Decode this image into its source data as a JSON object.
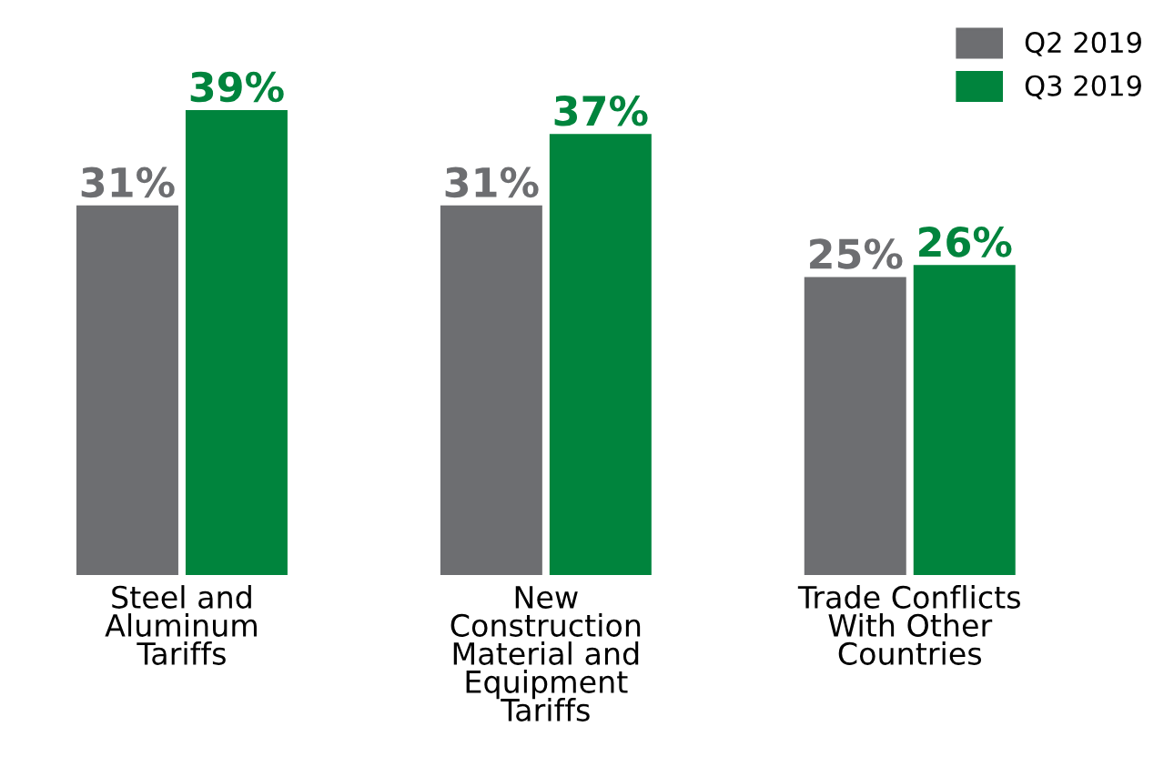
{
  "chart_data": {
    "type": "bar",
    "categories": [
      "Steel and\nAluminum\nTariffs",
      "New\nConstruction\nMaterial and\nEquipment\nTariffs",
      "Trade Conflicts\nWith Other\nCountries"
    ],
    "series": [
      {
        "name": "Q2 2019",
        "color": "#6d6e71",
        "values": [
          31,
          31,
          25
        ],
        "value_labels": [
          "31%",
          "31%",
          "25%"
        ]
      },
      {
        "name": "Q3 2019",
        "color": "#00843d",
        "values": [
          39,
          37,
          26
        ],
        "value_labels": [
          "39%",
          "37%",
          "26%"
        ]
      }
    ],
    "legend": "top right",
    "grid": false
  }
}
